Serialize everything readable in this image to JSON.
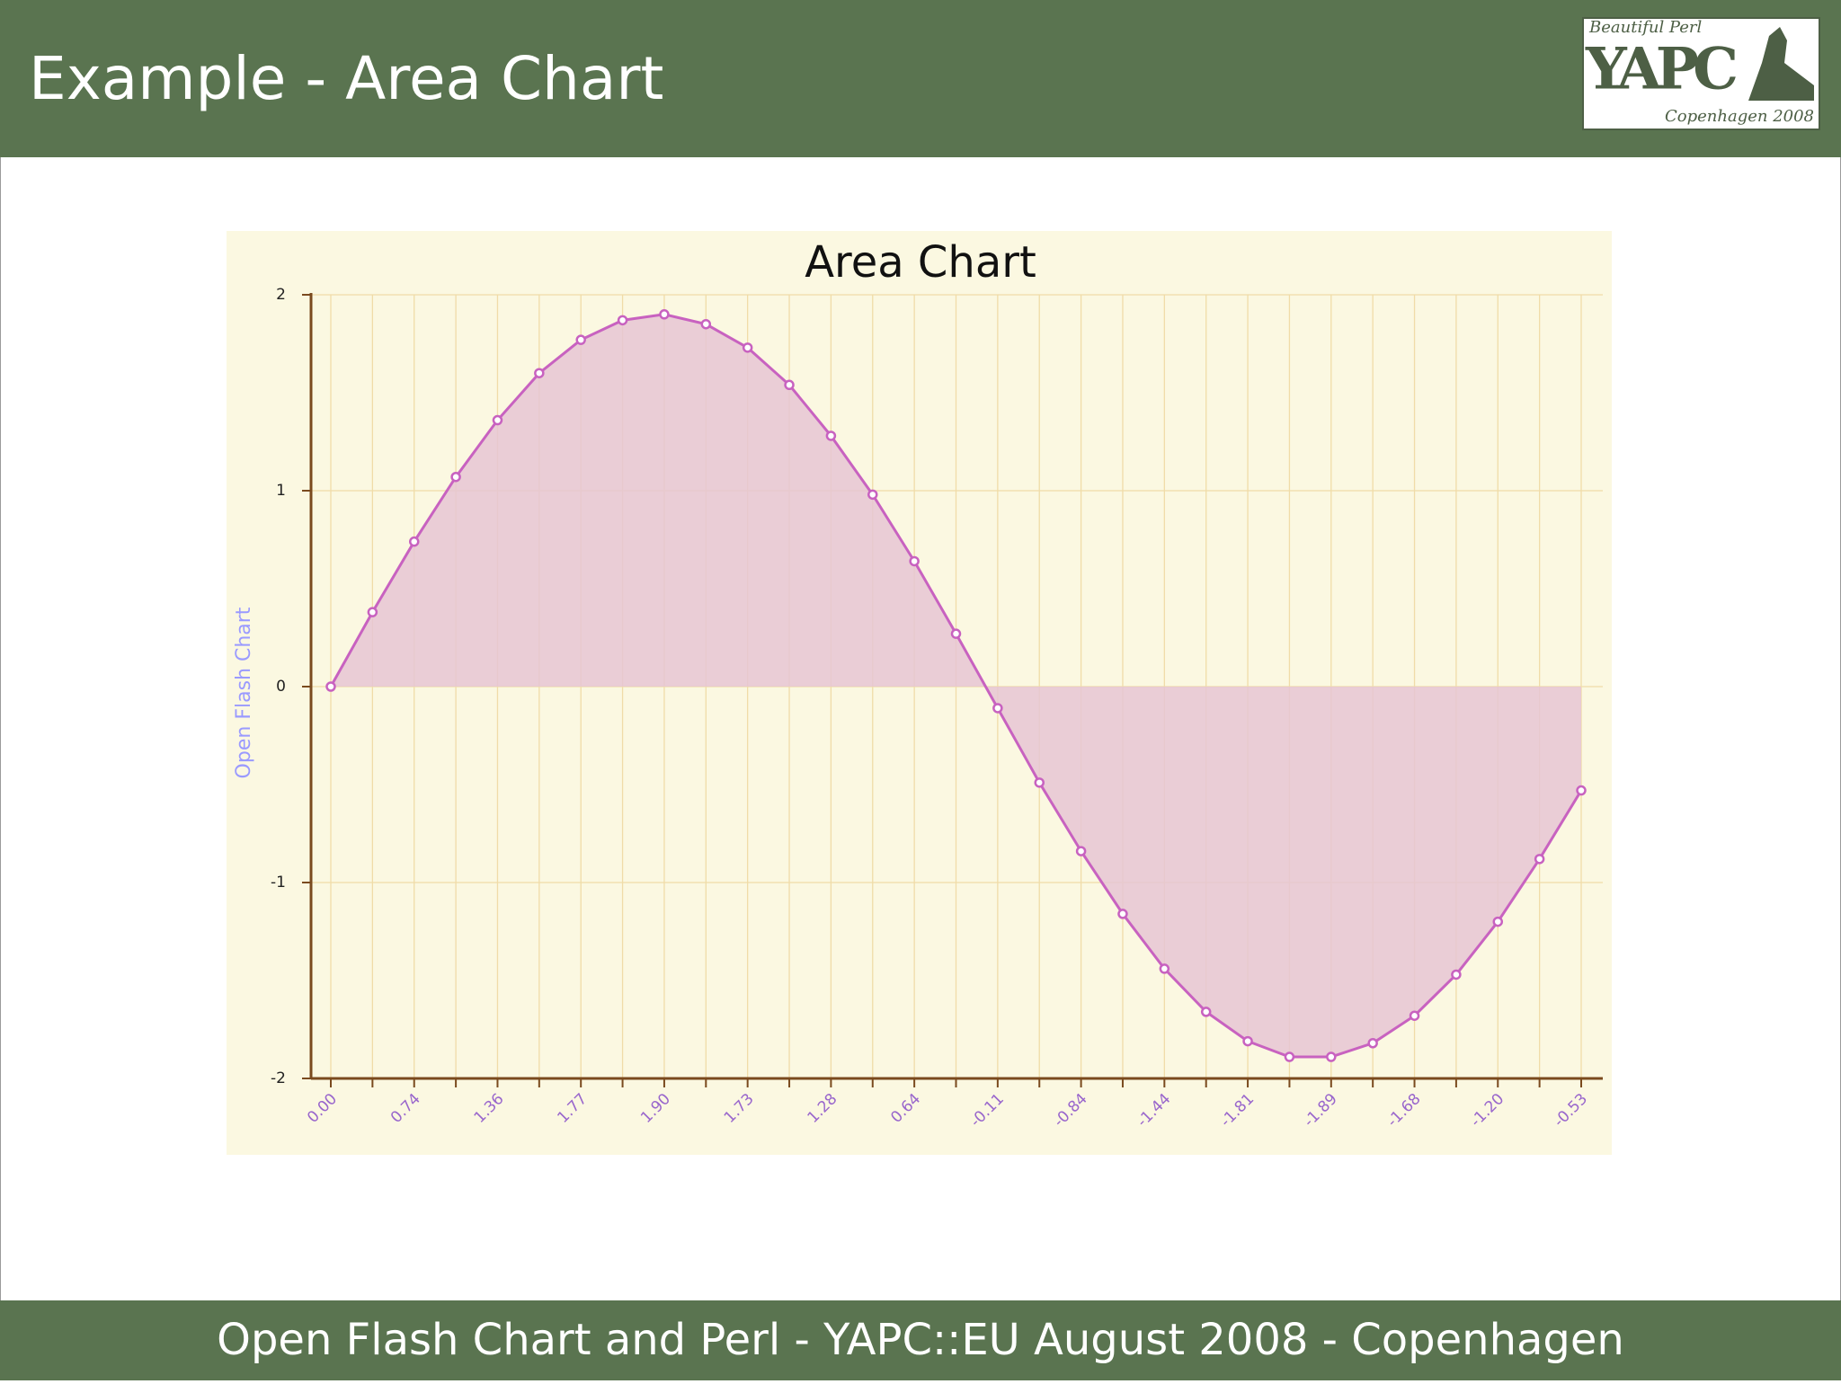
{
  "slide": {
    "title": "Example - Area Chart",
    "footer": "Open Flash Chart and Perl - YAPC::EU August 2008 - Copenhagen",
    "logo": {
      "tagline": "Beautiful Perl",
      "name": "YAPC",
      "place": "Copenhagen 2008"
    }
  },
  "chart_data": {
    "type": "area",
    "title": "Area Chart",
    "y_label": "Open Flash Chart",
    "categories": [
      "0.00",
      null,
      "0.74",
      null,
      "1.36",
      null,
      "1.77",
      null,
      "1.90",
      null,
      "1.73",
      null,
      "1.28",
      null,
      "0.64",
      null,
      "-0.11",
      null,
      "-0.84",
      null,
      "-1.44",
      null,
      "-1.81",
      null,
      "-1.89",
      null,
      "-1.68",
      null,
      "-1.20",
      null,
      "-0.53"
    ],
    "values": [
      0.0,
      0.38,
      0.74,
      1.07,
      1.36,
      1.6,
      1.77,
      1.87,
      1.9,
      1.85,
      1.73,
      1.54,
      1.28,
      0.98,
      0.64,
      0.27,
      -0.11,
      -0.49,
      -0.84,
      -1.16,
      -1.44,
      -1.66,
      -1.81,
      -1.89,
      -1.89,
      -1.82,
      -1.68,
      -1.47,
      -1.2,
      -0.88,
      -0.53
    ],
    "color": "#c862c0",
    "fill": "#e6c6d3",
    "ylim": [
      -2,
      2
    ],
    "yticks": [
      -2,
      -1,
      0,
      1,
      2
    ],
    "grid": true
  }
}
